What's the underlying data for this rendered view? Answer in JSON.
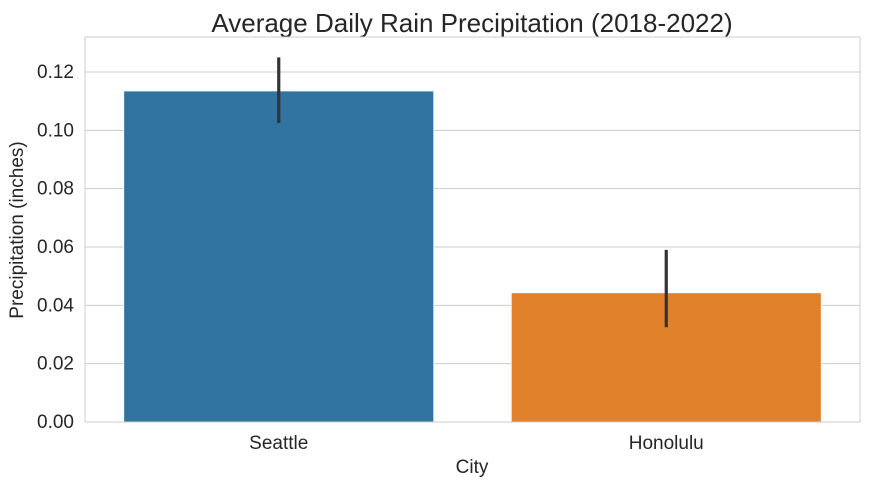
{
  "chart_data": {
    "type": "bar",
    "title": "Average Daily Rain Precipitation (2018-2022)",
    "xlabel": "City",
    "ylabel": "Precipitation (inches)",
    "categories": [
      "Seattle",
      "Honolulu"
    ],
    "values": [
      0.1135,
      0.0443
    ],
    "error_low": [
      0.1025,
      0.0325
    ],
    "error_high": [
      0.125,
      0.059
    ],
    "colors": [
      "#3274a1",
      "#e1812c"
    ],
    "error_color": "#333333",
    "ylim": [
      0,
      0.132
    ],
    "yticks": [
      0.0,
      0.02,
      0.04,
      0.06,
      0.08,
      0.1,
      0.12
    ],
    "ytick_labels": [
      "0.00",
      "0.02",
      "0.04",
      "0.06",
      "0.08",
      "0.10",
      "0.12"
    ],
    "grid": true,
    "grid_axis": "y",
    "grid_color": "#cccccc",
    "spine_color": "#cccccc"
  }
}
